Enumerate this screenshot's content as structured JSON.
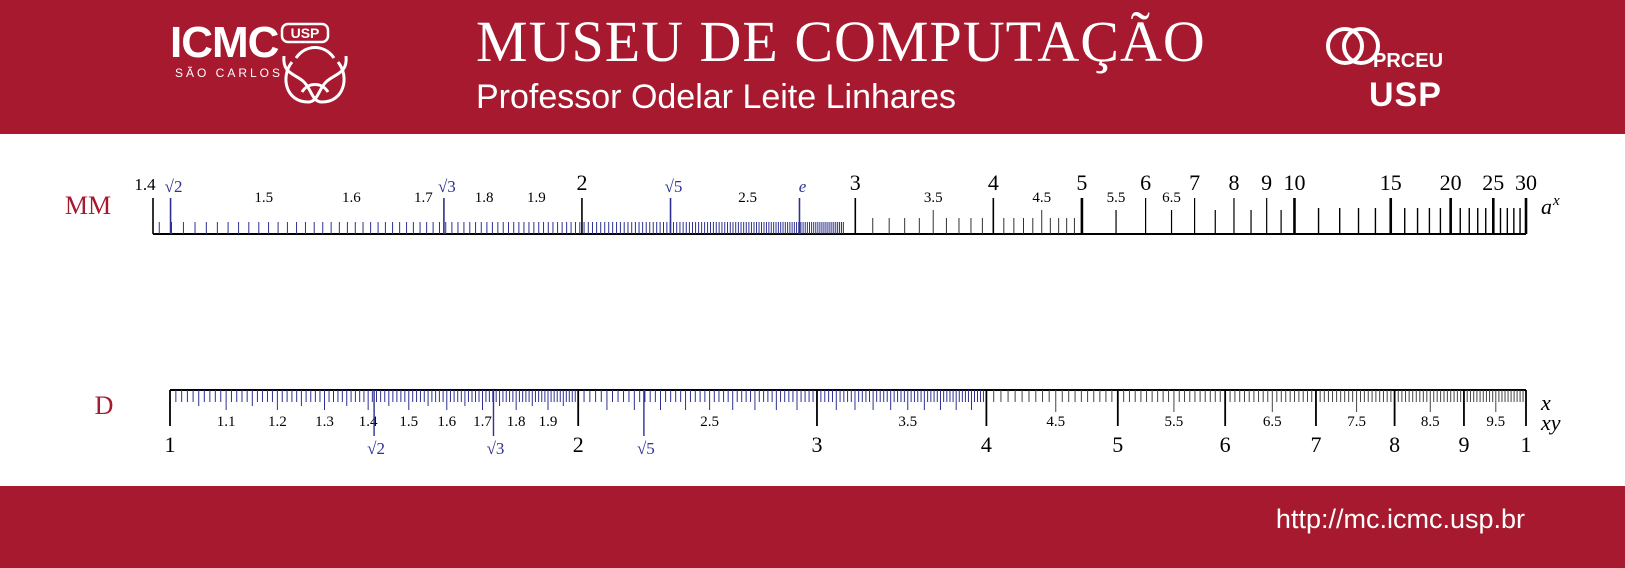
{
  "header": {
    "title": "MUSEU DE COMPUTAÇÃO",
    "subtitle": "Professor Odelar Leite Linhares",
    "left_logo": {
      "text": "ICMC",
      "badge": "USP",
      "city": "SÃO CARLOS"
    },
    "right_logo": {
      "text": "PRCEU",
      "badge": "USP"
    }
  },
  "footer": {
    "url": "http://mc.icmc.usp.br"
  },
  "colors": {
    "brand": "#a6192e",
    "accent": "#2e3192",
    "text": "#000000"
  },
  "scales": [
    {
      "name": "MM",
      "right_label": "a^x",
      "kind": "power",
      "domain": [
        1.4,
        30
      ],
      "major_labels": [
        "1.4",
        "2",
        "3",
        "4",
        "5",
        "6",
        "7",
        "8",
        "9",
        "10",
        "15",
        "20",
        "25",
        "30"
      ],
      "minor_labels": [
        "1.5",
        "1.6",
        "1.7",
        "1.8",
        "1.9",
        "2.5",
        "3.5",
        "4.5",
        "5.5",
        "6.5"
      ],
      "constants": [
        "√2",
        "√3",
        "√5",
        "e"
      ]
    },
    {
      "name": "D",
      "right_labels": [
        "x",
        "xy"
      ],
      "kind": "log",
      "domain": [
        1,
        10
      ],
      "major_labels": [
        "1",
        "2",
        "3",
        "4",
        "5",
        "6",
        "7",
        "8",
        "9",
        "1"
      ],
      "minor_labels": [
        "1.1",
        "1.2",
        "1.3",
        "1.4",
        "1.5",
        "1.6",
        "1.7",
        "1.8",
        "1.9",
        "2.5",
        "3.5",
        "4.5",
        "5.5",
        "6.5",
        "7.5",
        "8.5",
        "9.5"
      ],
      "constants": [
        "√2",
        "√3",
        "√5"
      ]
    }
  ]
}
